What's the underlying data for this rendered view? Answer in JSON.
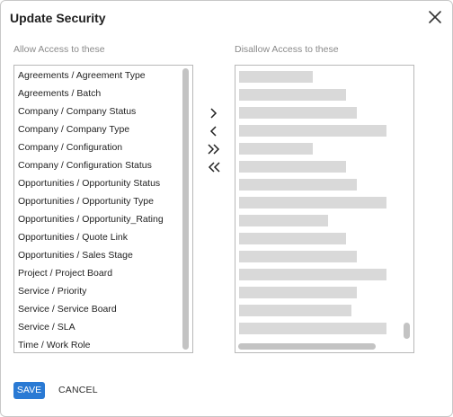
{
  "dialog": {
    "title": "Update Security",
    "close_icon": "close-icon"
  },
  "allow": {
    "label": "Allow Access to these",
    "items": [
      "Agreements / Agreement Type",
      "Agreements / Batch",
      "Company / Company Status",
      "Company / Company Type",
      "Company / Configuration",
      "Company / Configuration Status",
      "Opportunities / Opportunity Status",
      "Opportunities / Opportunity Type",
      "Opportunities / Opportunity_Rating",
      "Opportunities / Quote Link",
      "Opportunities / Sales Stage",
      "Project / Project Board",
      "Service / Priority",
      "Service / Service Board",
      "Service / SLA",
      "Time / Work Role"
    ]
  },
  "disallow": {
    "label": "Disallow Access to these"
  },
  "transfer_buttons": {
    "move_right": "chevron-right-icon",
    "move_left": "chevron-left-icon",
    "move_all_right": "double-chevron-right-icon",
    "move_all_left": "double-chevron-left-icon"
  },
  "footer": {
    "save_label": "SAVE",
    "cancel_label": "CANCEL"
  },
  "colors": {
    "accent": "#2a7ad4",
    "placeholder": "#d9d9d9"
  }
}
